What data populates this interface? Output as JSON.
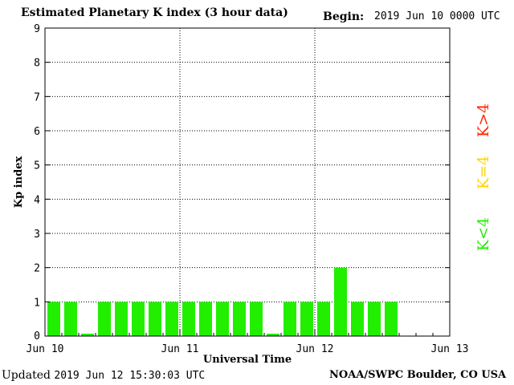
{
  "header": {
    "title": "Estimated Planetary K index (3 hour data)",
    "begin_label": "Begin:",
    "begin_value": "2019 Jun 10 0000 UTC"
  },
  "footer": {
    "updated_label": "Updated",
    "updated_value": "2019 Jun 12 15:30:03 UTC",
    "source": "NOAA/SWPC Boulder, CO USA"
  },
  "legend": [
    {
      "label": "K>4",
      "color": "#ff2a00"
    },
    {
      "label": "K=4",
      "color": "#ffd700"
    },
    {
      "label": "K<4",
      "color": "#22ee00"
    }
  ],
  "chart_data": {
    "type": "bar",
    "title": "Estimated Planetary K index (3 hour data)",
    "xlabel": "Universal Time",
    "ylabel": "Kp index",
    "ylim": [
      0,
      9
    ],
    "yticks": [
      0,
      1,
      2,
      3,
      4,
      5,
      6,
      7,
      8,
      9
    ],
    "xticks": [
      "Jun 10",
      "Jun 11",
      "Jun 12",
      "Jun 13"
    ],
    "slots_per_day": 8,
    "days": 3,
    "grid": true,
    "values": [
      1,
      1,
      0.07,
      1,
      1,
      1,
      1,
      1,
      1,
      1,
      1,
      1,
      1,
      0.07,
      1,
      1,
      1,
      2,
      1,
      1,
      1
    ],
    "bar_color": "#22ee00"
  }
}
